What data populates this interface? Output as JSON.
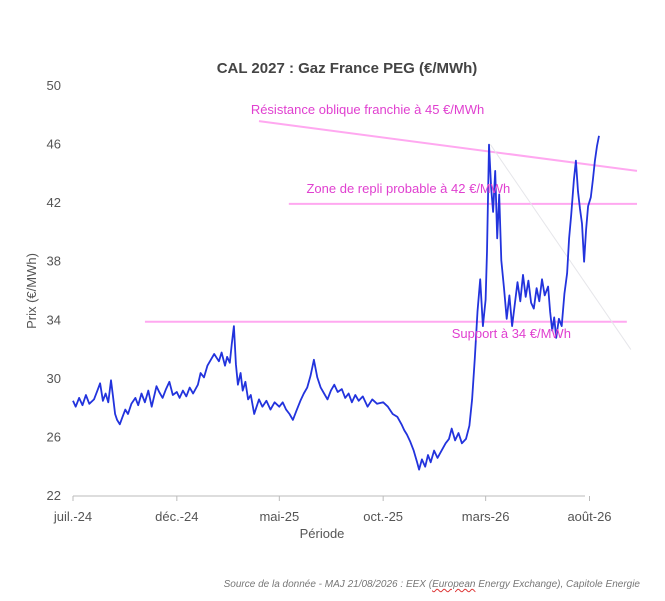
{
  "chart_data": {
    "type": "line",
    "title": "CAL 2027 : Gaz France PEG (€/MWh)",
    "xlabel": "Période",
    "ylabel": "Prix (€/MWh)",
    "ylim": [
      22,
      50
    ],
    "yticks": [
      22,
      26,
      30,
      34,
      38,
      42,
      46,
      50
    ],
    "xlim": [
      "2024-07-01",
      "2026-10-10"
    ],
    "xticks": [
      {
        "date": "2024-07-01",
        "label": "juil.-24"
      },
      {
        "date": "2024-12-01",
        "label": "déc.-24"
      },
      {
        "date": "2025-05-01",
        "label": "mai-25"
      },
      {
        "date": "2025-10-01",
        "label": "oct.-25"
      },
      {
        "date": "2026-03-01",
        "label": "mars-26"
      },
      {
        "date": "2026-08-01",
        "label": "août-26"
      }
    ],
    "grid": false,
    "series": [
      {
        "color": "#2233dd",
        "points": [
          [
            "2024-07-01",
            28.5
          ],
          [
            "2024-07-05",
            28.1
          ],
          [
            "2024-07-10",
            28.7
          ],
          [
            "2024-07-15",
            28.2
          ],
          [
            "2024-07-20",
            28.9
          ],
          [
            "2024-07-25",
            28.3
          ],
          [
            "2024-08-01",
            28.6
          ],
          [
            "2024-08-06",
            29.2
          ],
          [
            "2024-08-10",
            29.7
          ],
          [
            "2024-08-14",
            28.5
          ],
          [
            "2024-08-18",
            29.0
          ],
          [
            "2024-08-22",
            28.4
          ],
          [
            "2024-08-26",
            29.9
          ],
          [
            "2024-08-29",
            28.8
          ],
          [
            "2024-09-01",
            27.6
          ],
          [
            "2024-09-04",
            27.2
          ],
          [
            "2024-09-08",
            26.9
          ],
          [
            "2024-09-12",
            27.4
          ],
          [
            "2024-09-16",
            27.9
          ],
          [
            "2024-09-20",
            27.6
          ],
          [
            "2024-09-25",
            28.3
          ],
          [
            "2024-10-01",
            28.7
          ],
          [
            "2024-10-05",
            28.2
          ],
          [
            "2024-10-10",
            29.0
          ],
          [
            "2024-10-15",
            28.4
          ],
          [
            "2024-10-20",
            29.2
          ],
          [
            "2024-10-25",
            28.1
          ],
          [
            "2024-11-01",
            29.5
          ],
          [
            "2024-11-05",
            29.1
          ],
          [
            "2024-11-10",
            28.7
          ],
          [
            "2024-11-15",
            29.3
          ],
          [
            "2024-11-20",
            29.8
          ],
          [
            "2024-11-25",
            28.9
          ],
          [
            "2024-12-01",
            29.1
          ],
          [
            "2024-12-05",
            28.7
          ],
          [
            "2024-12-10",
            29.2
          ],
          [
            "2024-12-15",
            28.8
          ],
          [
            "2024-12-20",
            29.4
          ],
          [
            "2024-12-25",
            29.0
          ],
          [
            "2025-01-01",
            29.6
          ],
          [
            "2025-01-05",
            30.4
          ],
          [
            "2025-01-10",
            30.1
          ],
          [
            "2025-01-15",
            30.9
          ],
          [
            "2025-01-20",
            31.3
          ],
          [
            "2025-01-25",
            31.7
          ],
          [
            "2025-02-01",
            31.2
          ],
          [
            "2025-02-05",
            31.8
          ],
          [
            "2025-02-10",
            30.9
          ],
          [
            "2025-02-13",
            31.5
          ],
          [
            "2025-02-17",
            31.1
          ],
          [
            "2025-02-20",
            32.4
          ],
          [
            "2025-02-23",
            33.6
          ],
          [
            "2025-02-26",
            31.0
          ],
          [
            "2025-03-01",
            29.6
          ],
          [
            "2025-03-05",
            30.4
          ],
          [
            "2025-03-08",
            29.2
          ],
          [
            "2025-03-12",
            29.8
          ],
          [
            "2025-03-16",
            28.6
          ],
          [
            "2025-03-20",
            28.9
          ],
          [
            "2025-03-25",
            27.6
          ],
          [
            "2025-04-01",
            28.6
          ],
          [
            "2025-04-06",
            28.1
          ],
          [
            "2025-04-12",
            28.5
          ],
          [
            "2025-04-18",
            27.9
          ],
          [
            "2025-04-24",
            28.4
          ],
          [
            "2025-05-01",
            28.1
          ],
          [
            "2025-05-06",
            28.4
          ],
          [
            "2025-05-11",
            27.9
          ],
          [
            "2025-05-16",
            27.6
          ],
          [
            "2025-05-21",
            27.2
          ],
          [
            "2025-05-26",
            27.8
          ],
          [
            "2025-06-01",
            28.5
          ],
          [
            "2025-06-06",
            29.0
          ],
          [
            "2025-06-11",
            29.4
          ],
          [
            "2025-06-16",
            30.2
          ],
          [
            "2025-06-21",
            31.3
          ],
          [
            "2025-06-26",
            30.1
          ],
          [
            "2025-07-01",
            29.4
          ],
          [
            "2025-07-06",
            29.0
          ],
          [
            "2025-07-11",
            28.6
          ],
          [
            "2025-07-16",
            29.2
          ],
          [
            "2025-07-21",
            29.6
          ],
          [
            "2025-07-26",
            29.1
          ],
          [
            "2025-08-01",
            29.3
          ],
          [
            "2025-08-06",
            28.7
          ],
          [
            "2025-08-11",
            29.0
          ],
          [
            "2025-08-16",
            28.4
          ],
          [
            "2025-08-21",
            28.9
          ],
          [
            "2025-08-26",
            28.5
          ],
          [
            "2025-09-01",
            28.8
          ],
          [
            "2025-09-08",
            28.1
          ],
          [
            "2025-09-15",
            28.6
          ],
          [
            "2025-09-22",
            28.3
          ],
          [
            "2025-10-01",
            28.4
          ],
          [
            "2025-10-08",
            28.1
          ],
          [
            "2025-10-15",
            27.6
          ],
          [
            "2025-10-22",
            27.4
          ],
          [
            "2025-10-28",
            26.9
          ],
          [
            "2025-11-01",
            26.5
          ],
          [
            "2025-11-05",
            26.2
          ],
          [
            "2025-11-10",
            25.7
          ],
          [
            "2025-11-15",
            25.1
          ],
          [
            "2025-11-20",
            24.3
          ],
          [
            "2025-11-23",
            23.8
          ],
          [
            "2025-11-27",
            24.5
          ],
          [
            "2025-12-02",
            24.0
          ],
          [
            "2025-12-06",
            24.8
          ],
          [
            "2025-12-10",
            24.3
          ],
          [
            "2025-12-15",
            25.1
          ],
          [
            "2025-12-20",
            24.6
          ],
          [
            "2026-01-01",
            25.6
          ],
          [
            "2026-01-06",
            25.9
          ],
          [
            "2026-01-10",
            26.6
          ],
          [
            "2026-01-15",
            25.8
          ],
          [
            "2026-01-20",
            26.3
          ],
          [
            "2026-01-25",
            25.6
          ],
          [
            "2026-01-31",
            25.9
          ],
          [
            "2026-02-05",
            26.8
          ],
          [
            "2026-02-09",
            28.6
          ],
          [
            "2026-02-13",
            31.4
          ],
          [
            "2026-02-17",
            34.6
          ],
          [
            "2026-02-21",
            36.8
          ],
          [
            "2026-02-25",
            33.6
          ],
          [
            "2026-03-01",
            35.4
          ],
          [
            "2026-03-03",
            38.7
          ],
          [
            "2026-03-06",
            46.0
          ],
          [
            "2026-03-09",
            43.1
          ],
          [
            "2026-03-12",
            41.4
          ],
          [
            "2026-03-15",
            44.2
          ],
          [
            "2026-03-18",
            39.6
          ],
          [
            "2026-03-21",
            42.6
          ],
          [
            "2026-03-24",
            38.1
          ],
          [
            "2026-03-28",
            36.2
          ],
          [
            "2026-04-01",
            34.1
          ],
          [
            "2026-04-05",
            35.7
          ],
          [
            "2026-04-09",
            33.6
          ],
          [
            "2026-04-13",
            35.1
          ],
          [
            "2026-04-17",
            36.6
          ],
          [
            "2026-04-21",
            35.3
          ],
          [
            "2026-04-25",
            37.1
          ],
          [
            "2026-04-29",
            35.6
          ],
          [
            "2026-05-03",
            36.7
          ],
          [
            "2026-05-07",
            35.2
          ],
          [
            "2026-05-11",
            34.8
          ],
          [
            "2026-05-15",
            36.2
          ],
          [
            "2026-05-19",
            35.3
          ],
          [
            "2026-05-23",
            36.8
          ],
          [
            "2026-05-27",
            35.7
          ],
          [
            "2026-06-01",
            36.3
          ],
          [
            "2026-06-04",
            34.6
          ],
          [
            "2026-06-07",
            33.3
          ],
          [
            "2026-06-10",
            34.2
          ],
          [
            "2026-06-13",
            32.8
          ],
          [
            "2026-06-17",
            34.1
          ],
          [
            "2026-06-21",
            33.6
          ],
          [
            "2026-06-25",
            35.8
          ],
          [
            "2026-06-29",
            37.2
          ],
          [
            "2026-07-02",
            39.6
          ],
          [
            "2026-07-05",
            41.2
          ],
          [
            "2026-07-09",
            43.6
          ],
          [
            "2026-07-12",
            44.9
          ],
          [
            "2026-07-15",
            42.8
          ],
          [
            "2026-07-18",
            41.6
          ],
          [
            "2026-07-21",
            40.6
          ],
          [
            "2026-07-24",
            38.0
          ],
          [
            "2026-07-27",
            40.2
          ],
          [
            "2026-07-30",
            41.8
          ],
          [
            "2026-08-03",
            42.4
          ],
          [
            "2026-08-06",
            43.6
          ],
          [
            "2026-08-09",
            44.9
          ],
          [
            "2026-08-12",
            45.9
          ],
          [
            "2026-08-15",
            46.6
          ]
        ]
      }
    ],
    "annotations": [
      {
        "text": "Résistance oblique franchie  à 45 €/MWh",
        "color": "#e040d0",
        "line": [
          [
            "2025-04-01",
            47.6
          ],
          [
            "2026-10-10",
            44.2
          ]
        ],
        "line_color": "#ffa8f0",
        "anchor": [
          "2025-03-20",
          48.1
        ]
      },
      {
        "text": "Zone de repli probable à 42 €/MWh",
        "color": "#e040d0",
        "line": [
          [
            "2025-05-15",
            41.95
          ],
          [
            "2026-10-10",
            41.95
          ]
        ],
        "line_color": "#ffa8f0",
        "anchor": [
          "2025-06-10",
          42.7
        ]
      },
      {
        "text": "Support à 34 €/MWh",
        "color": "#e040d0",
        "line": [
          [
            "2024-10-15",
            33.9
          ],
          [
            "2026-09-25",
            33.9
          ]
        ],
        "line_color": "#ffa8f0",
        "anchor": [
          "2026-01-10",
          32.8
        ]
      }
    ],
    "faint_line": [
      [
        "2026-03-08",
        46.0
      ],
      [
        "2026-10-01",
        32.0
      ]
    ]
  },
  "source": {
    "before": "Source de la donnée - MAJ 21/08/2026 : EEX (",
    "eex": "European",
    "after": " Energy Exchange), Capitole Energie"
  }
}
